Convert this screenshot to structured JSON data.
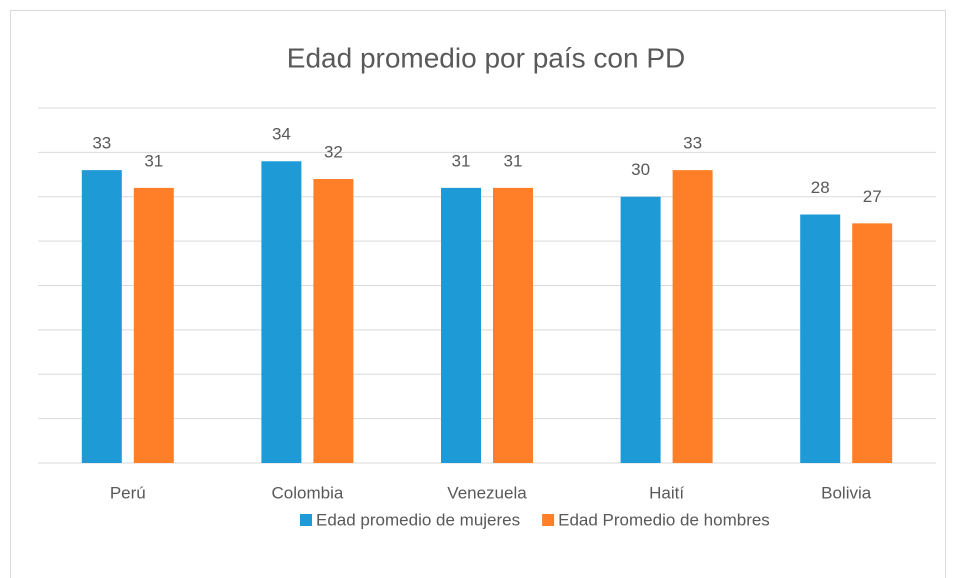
{
  "chart_data": {
    "type": "bar",
    "title": "Edad promedio por país con PD",
    "categories": [
      "Perú",
      "Colombia",
      "Venezuela",
      "Haití",
      "Bolivia"
    ],
    "series": [
      {
        "name": "Edad promedio de mujeres",
        "color": "#1e9bd7",
        "values": [
          33,
          34,
          31,
          30,
          28
        ]
      },
      {
        "name": "Edad Promedio de hombres",
        "color": "#fe7f27",
        "values": [
          31,
          32,
          31,
          33,
          27
        ]
      }
    ],
    "ylim": [
      0,
      40
    ],
    "yticks": [
      0,
      5,
      10,
      15,
      20,
      25,
      30,
      35,
      40
    ],
    "grid": true,
    "legend": "bottom"
  }
}
